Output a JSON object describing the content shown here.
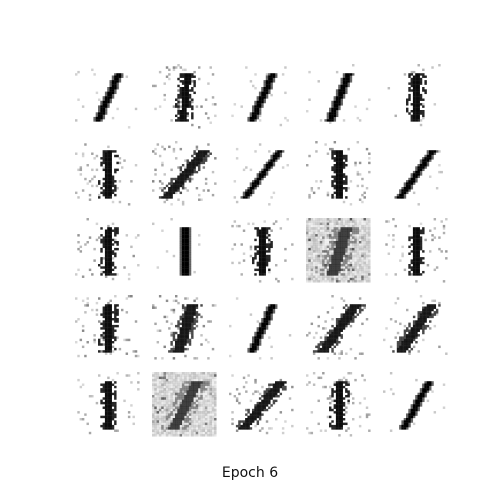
{
  "caption": "Epoch 6",
  "colors": {
    "ink": "#000000",
    "background": "#ffffff"
  },
  "grid": {
    "rows": 5,
    "cols": 5,
    "samples": [
      {
        "row": 1,
        "col": 1,
        "style": "stroke",
        "slant": 0.45,
        "tilt": 0.3,
        "fuzz": 0.15
      },
      {
        "row": 1,
        "col": 2,
        "style": "scrawl",
        "slant": 0.1,
        "tilt": 0.05,
        "fuzz": 0.55
      },
      {
        "row": 1,
        "col": 3,
        "style": "stroke",
        "slant": 0.45,
        "tilt": 0.3,
        "fuzz": 0.15
      },
      {
        "row": 1,
        "col": 4,
        "style": "stroke",
        "slant": 0.4,
        "tilt": 0.25,
        "fuzz": 0.15
      },
      {
        "row": 1,
        "col": 5,
        "style": "scrawl",
        "slant": 0.05,
        "tilt": 0.0,
        "fuzz": 0.3
      },
      {
        "row": 2,
        "col": 1,
        "style": "scrawl",
        "slant": 0.05,
        "tilt": 0.0,
        "fuzz": 0.4
      },
      {
        "row": 2,
        "col": 2,
        "style": "smear",
        "slant": 0.8,
        "tilt": 0.5,
        "fuzz": 0.55
      },
      {
        "row": 2,
        "col": 3,
        "style": "stroke",
        "slant": 0.75,
        "tilt": 0.5,
        "fuzz": 0.15
      },
      {
        "row": 2,
        "col": 4,
        "style": "scrawl",
        "slant": 0.0,
        "tilt": 0.0,
        "fuzz": 0.5
      },
      {
        "row": 2,
        "col": 5,
        "style": "stroke",
        "slant": 0.7,
        "tilt": 0.5,
        "fuzz": 0.15
      },
      {
        "row": 3,
        "col": 1,
        "style": "scrawl",
        "slant": 0.05,
        "tilt": 0.0,
        "fuzz": 0.45
      },
      {
        "row": 3,
        "col": 2,
        "style": "stroke",
        "slant": 0.0,
        "tilt": 0.0,
        "fuzz": 0.12
      },
      {
        "row": 3,
        "col": 3,
        "style": "scrawl",
        "slant": 0.05,
        "tilt": 0.0,
        "fuzz": 0.4
      },
      {
        "row": 3,
        "col": 4,
        "style": "noise",
        "slant": 0.3,
        "tilt": 0.2,
        "fuzz": 0.9
      },
      {
        "row": 3,
        "col": 5,
        "style": "scrawl",
        "slant": 0.0,
        "tilt": 0.0,
        "fuzz": 0.45
      },
      {
        "row": 4,
        "col": 1,
        "style": "scrawl",
        "slant": 0.05,
        "tilt": 0.0,
        "fuzz": 0.55
      },
      {
        "row": 4,
        "col": 2,
        "style": "smear",
        "slant": 0.3,
        "tilt": 0.1,
        "fuzz": 0.6
      },
      {
        "row": 4,
        "col": 3,
        "style": "stroke",
        "slant": 0.45,
        "tilt": 0.3,
        "fuzz": 0.15
      },
      {
        "row": 4,
        "col": 4,
        "style": "smear",
        "slant": 0.7,
        "tilt": 0.45,
        "fuzz": 0.45
      },
      {
        "row": 4,
        "col": 5,
        "style": "smear",
        "slant": 0.65,
        "tilt": 0.4,
        "fuzz": 0.4
      },
      {
        "row": 5,
        "col": 1,
        "style": "scrawl",
        "slant": 0.0,
        "tilt": 0.0,
        "fuzz": 0.35
      },
      {
        "row": 5,
        "col": 2,
        "style": "noise",
        "slant": 0.5,
        "tilt": 0.3,
        "fuzz": 0.8
      },
      {
        "row": 5,
        "col": 3,
        "style": "smear",
        "slant": 0.8,
        "tilt": 0.5,
        "fuzz": 0.5
      },
      {
        "row": 5,
        "col": 4,
        "style": "scrawl",
        "slant": 0.05,
        "tilt": 0.0,
        "fuzz": 0.4
      },
      {
        "row": 5,
        "col": 5,
        "style": "stroke",
        "slant": 0.55,
        "tilt": 0.35,
        "fuzz": 0.15
      }
    ]
  }
}
